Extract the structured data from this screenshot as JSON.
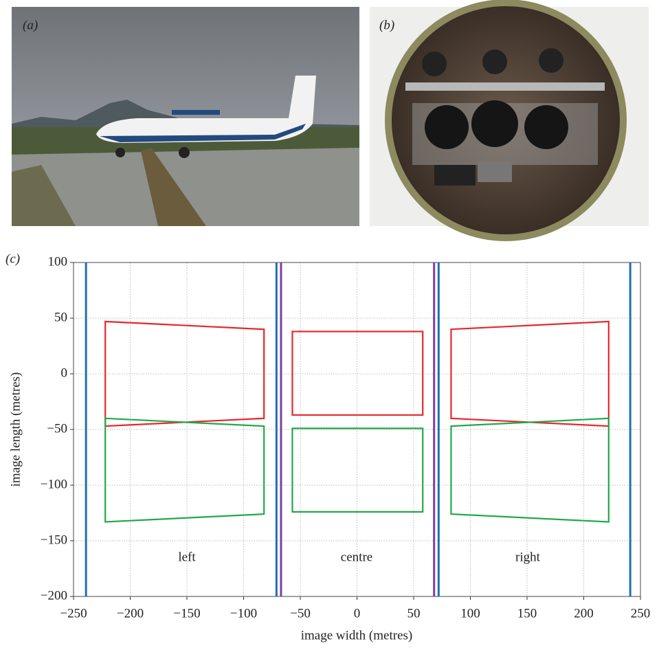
{
  "panel_labels": [
    "(a)",
    "(b)",
    "(c)"
  ],
  "chart_data": {
    "type": "polygon",
    "xlabel": "image width (metres)",
    "ylabel": "image length (metres)",
    "xlim": [
      -250,
      250
    ],
    "ylim": [
      -200,
      100
    ],
    "xticks": [
      {
        "value": -250,
        "label": "−250"
      },
      {
        "value": -200,
        "label": "−200"
      },
      {
        "value": -150,
        "label": "−150"
      },
      {
        "value": -100,
        "label": "−100"
      },
      {
        "value": -50,
        "label": "−50"
      },
      0,
      50,
      100,
      150,
      200,
      250
    ],
    "yticks": [
      {
        "value": -200,
        "label": "−200"
      },
      {
        "value": -150,
        "label": "−150"
      },
      {
        "value": -100,
        "label": "−100"
      },
      {
        "value": -50,
        "label": "−50"
      },
      0,
      50,
      100
    ],
    "grid": true,
    "series": [
      {
        "color": "#e8262b",
        "x": [
          -222,
          -82,
          -82,
          -222
        ],
        "y": [
          47,
          40,
          -40,
          -47
        ]
      },
      {
        "color": "#22a84a",
        "x": [
          -222,
          -82,
          -82,
          -222
        ],
        "y": [
          -40,
          -47,
          -126,
          -133
        ]
      },
      {
        "color": "#e8262b",
        "x": [
          -57,
          58,
          58,
          -57
        ],
        "y": [
          38,
          38,
          -37,
          -37
        ]
      },
      {
        "color": "#22a84a",
        "x": [
          -57,
          58,
          58,
          -57
        ],
        "y": [
          -49,
          -49,
          -124,
          -124
        ]
      },
      {
        "color": "#e8262b",
        "x": [
          83,
          222,
          222,
          83
        ],
        "y": [
          40,
          47,
          -47,
          -40
        ]
      },
      {
        "color": "#22a84a",
        "x": [
          83,
          222,
          222,
          83
        ],
        "y": [
          -47,
          -40,
          -133,
          -126
        ]
      }
    ],
    "vlines": [
      {
        "x": -239,
        "color": "#1f6fb2"
      },
      {
        "x": -71,
        "color": "#1f6fb2"
      },
      {
        "x": -67,
        "color": "#7b3fa0"
      },
      {
        "x": 68,
        "color": "#7b3fa0"
      },
      {
        "x": 72,
        "color": "#1f6fb2"
      },
      {
        "x": 241,
        "color": "#1f6fb2"
      }
    ],
    "annotations": [
      "left",
      "centre",
      "right"
    ]
  }
}
